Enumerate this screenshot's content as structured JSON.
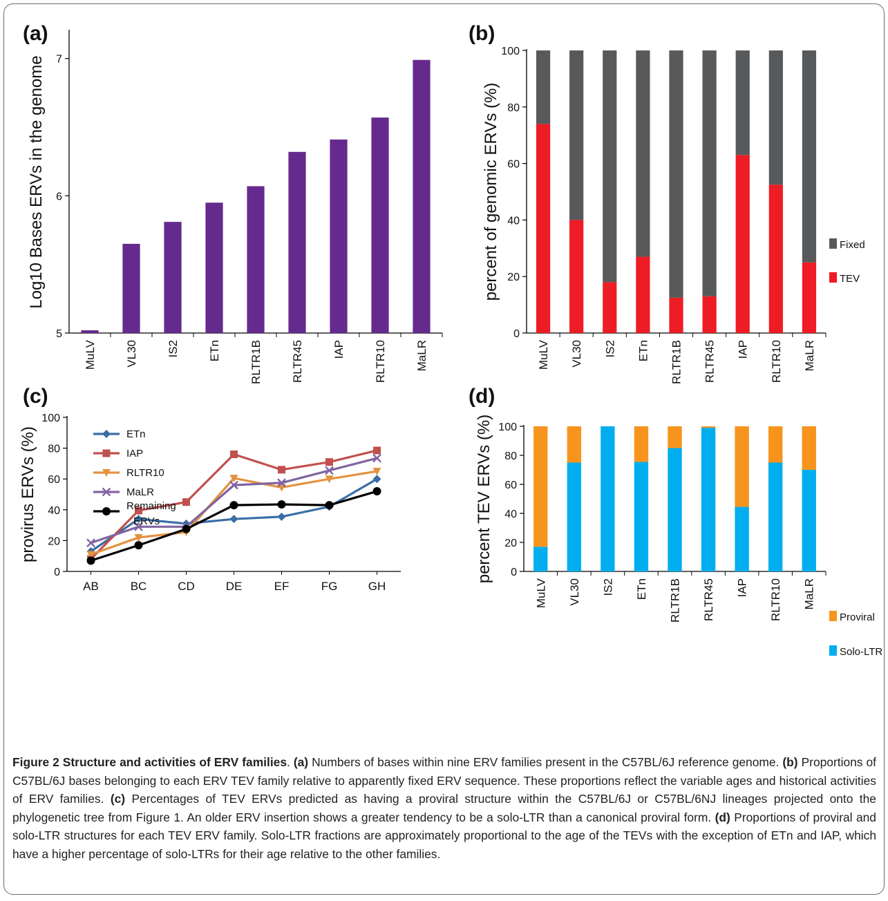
{
  "panel_labels": [
    "(a)",
    "(b)",
    "(c)",
    "(d)"
  ],
  "chart_data": [
    {
      "panel": "(a)",
      "type": "bar",
      "categories": [
        "MuLV",
        "VL30",
        "IS2",
        "ETn",
        "RLTR1B",
        "RLTR45",
        "IAP",
        "RLTR10",
        "MaLR"
      ],
      "values": [
        5.02,
        5.65,
        5.81,
        5.95,
        6.07,
        6.32,
        6.41,
        6.57,
        6.99
      ],
      "ylabel": "Log10 Bases ERVs in the genome",
      "ylim": [
        5,
        7.2
      ],
      "yticks": [
        5,
        6,
        7
      ],
      "color": "#652a8e"
    },
    {
      "panel": "(b)",
      "type": "bar",
      "stacked": true,
      "categories": [
        "MuLV",
        "VL30",
        "IS2",
        "ETn",
        "RLTR1B",
        "RLTR45",
        "IAP",
        "RLTR10",
        "MaLR"
      ],
      "series": [
        {
          "name": "TEV",
          "color": "#ee1c24",
          "values": [
            74,
            40,
            18,
            27,
            12.5,
            13,
            63,
            52.5,
            25
          ]
        },
        {
          "name": "Fixed",
          "color": "#58595b",
          "values": [
            26,
            60,
            82,
            73,
            87.5,
            87,
            37,
            47.5,
            75
          ]
        }
      ],
      "ylabel": "percent of genomic ERVs (%)",
      "ylim": [
        0,
        100
      ],
      "yticks": [
        0,
        20,
        40,
        60,
        80,
        100
      ],
      "legend_placement": "right"
    },
    {
      "panel": "(c)",
      "type": "line",
      "categories": [
        "AB",
        "BC",
        "CD",
        "DE",
        "EF",
        "FG",
        "GH"
      ],
      "series": [
        {
          "name": "ETn",
          "color": "#3a6ea5",
          "marker": "diamond",
          "values": [
            13,
            34,
            31,
            34,
            35.5,
            42,
            60
          ]
        },
        {
          "name": "IAP",
          "color": "#c0504d",
          "marker": "square",
          "values": [
            8,
            39.5,
            45,
            76,
            66,
            71,
            78.5
          ]
        },
        {
          "name": "RLTR10",
          "color": "#e3923f",
          "marker": "triangle",
          "values": [
            11,
            22,
            25.5,
            60.5,
            54.5,
            60,
            65
          ]
        },
        {
          "name": "MaLR",
          "color": "#8064a2",
          "marker": "x",
          "values": [
            18.5,
            29,
            29,
            56,
            57.5,
            65.5,
            73.5
          ]
        },
        {
          "name": "Remaining ERVs",
          "color": "#000000",
          "marker": "circle",
          "values": [
            7,
            17,
            27.5,
            43,
            43.5,
            43,
            52
          ]
        }
      ],
      "ylabel": "provirus ERVs (%)",
      "ylim": [
        0,
        100
      ],
      "yticks": [
        0,
        20,
        40,
        60,
        80,
        100
      ],
      "legend_placement": "top-left"
    },
    {
      "panel": "(d)",
      "type": "bar",
      "stacked": true,
      "categories": [
        "MuLV",
        "VL30",
        "IS2",
        "ETn",
        "RLTR1B",
        "RLTR45",
        "IAP",
        "RLTR10",
        "MaLR"
      ],
      "series": [
        {
          "name": "Solo-LTR",
          "color": "#00aeef",
          "values": [
            17,
            75,
            100,
            75.5,
            85,
            99,
            44.5,
            75,
            70
          ]
        },
        {
          "name": "Proviral",
          "color": "#f7941d",
          "values": [
            83,
            25,
            0,
            24.5,
            15,
            1,
            55.5,
            25,
            30
          ]
        }
      ],
      "ylabel": "percent TEV ERVs (%)",
      "ylim": [
        0,
        100
      ],
      "yticks": [
        0,
        20,
        40,
        60,
        80,
        100
      ],
      "legend_placement": "right"
    }
  ],
  "caption": {
    "title": "Figure 2 Structure and activities of ERV families",
    "sep": ". ",
    "parts": [
      {
        "label": "(a)",
        "text": " Numbers of bases within nine ERV families present in the C57BL/6J reference genome. "
      },
      {
        "label": "(b)",
        "text": " Proportions of C57BL/6J bases belonging to each ERV TEV family relative to apparently fixed ERV sequence. These proportions reflect the variable ages and historical activities of ERV families. "
      },
      {
        "label": "(c)",
        "text": " Percentages of TEV ERVs predicted as having a proviral structure within the C57BL/6J or C57BL/6NJ lineages projected onto the phylogenetic tree from Figure 1. An older ERV insertion shows a greater tendency to be a solo-LTR than a canonical proviral form. "
      },
      {
        "label": "(d)",
        "text": " Proportions of proviral and solo-LTR structures for each TEV ERV family. Solo-LTR fractions are approximately proportional to the age of the TEVs with the exception of ETn and IAP, which have a higher percentage of solo-LTRs for their age relative to the other families."
      }
    ]
  }
}
